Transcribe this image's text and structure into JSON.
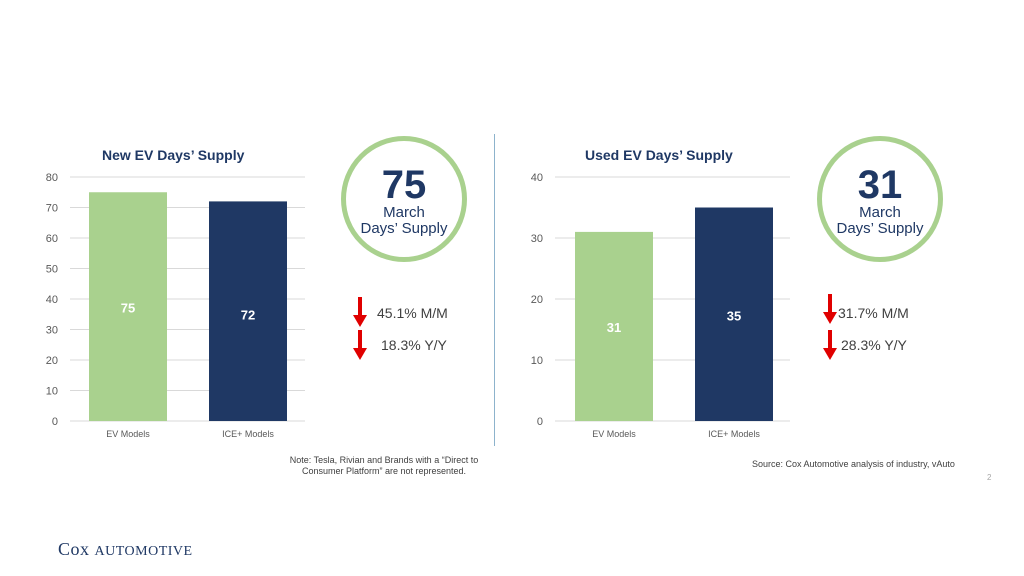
{
  "footer": {
    "note": "Note: Tesla, Rivian and Brands with a “Direct to Consumer Platform” are not represented.",
    "source": "Source: Cox Automotive analysis of industry, vAuto",
    "page_number": "2",
    "logo_cox": "Cox",
    "logo_automotive": "Automotive"
  },
  "new_panel": {
    "big_value": "75",
    "label_line1": "March",
    "label_line2": "Days’ Supply",
    "mm_change": "45.1% M/M",
    "yy_change": "18.3% Y/Y"
  },
  "used_panel": {
    "big_value": "31",
    "label_line1": "March",
    "label_line2": "Days’ Supply",
    "mm_change": "31.7% M/M",
    "yy_change": "28.3% Y/Y"
  },
  "colors": {
    "ev": "#a9d18e",
    "ice": "#1f3864",
    "arrow": "#e00000"
  },
  "chart_data": [
    {
      "type": "bar",
      "title": "New EV Days’ Supply",
      "categories": [
        "EV Models",
        "ICE+ Models"
      ],
      "values": [
        75,
        72
      ],
      "data_labels": [
        "75",
        "72"
      ],
      "ylim": [
        0,
        80
      ],
      "yticks": [
        0,
        10,
        20,
        30,
        40,
        50,
        60,
        70,
        80
      ],
      "grid": true
    },
    {
      "type": "bar",
      "title": "Used EV Days’ Supply",
      "categories": [
        "EV Models",
        "ICE+ Models"
      ],
      "values": [
        31,
        35
      ],
      "data_labels": [
        "31",
        "35"
      ],
      "ylim": [
        0,
        40
      ],
      "yticks": [
        0,
        10,
        20,
        30,
        40
      ],
      "grid": true
    }
  ]
}
